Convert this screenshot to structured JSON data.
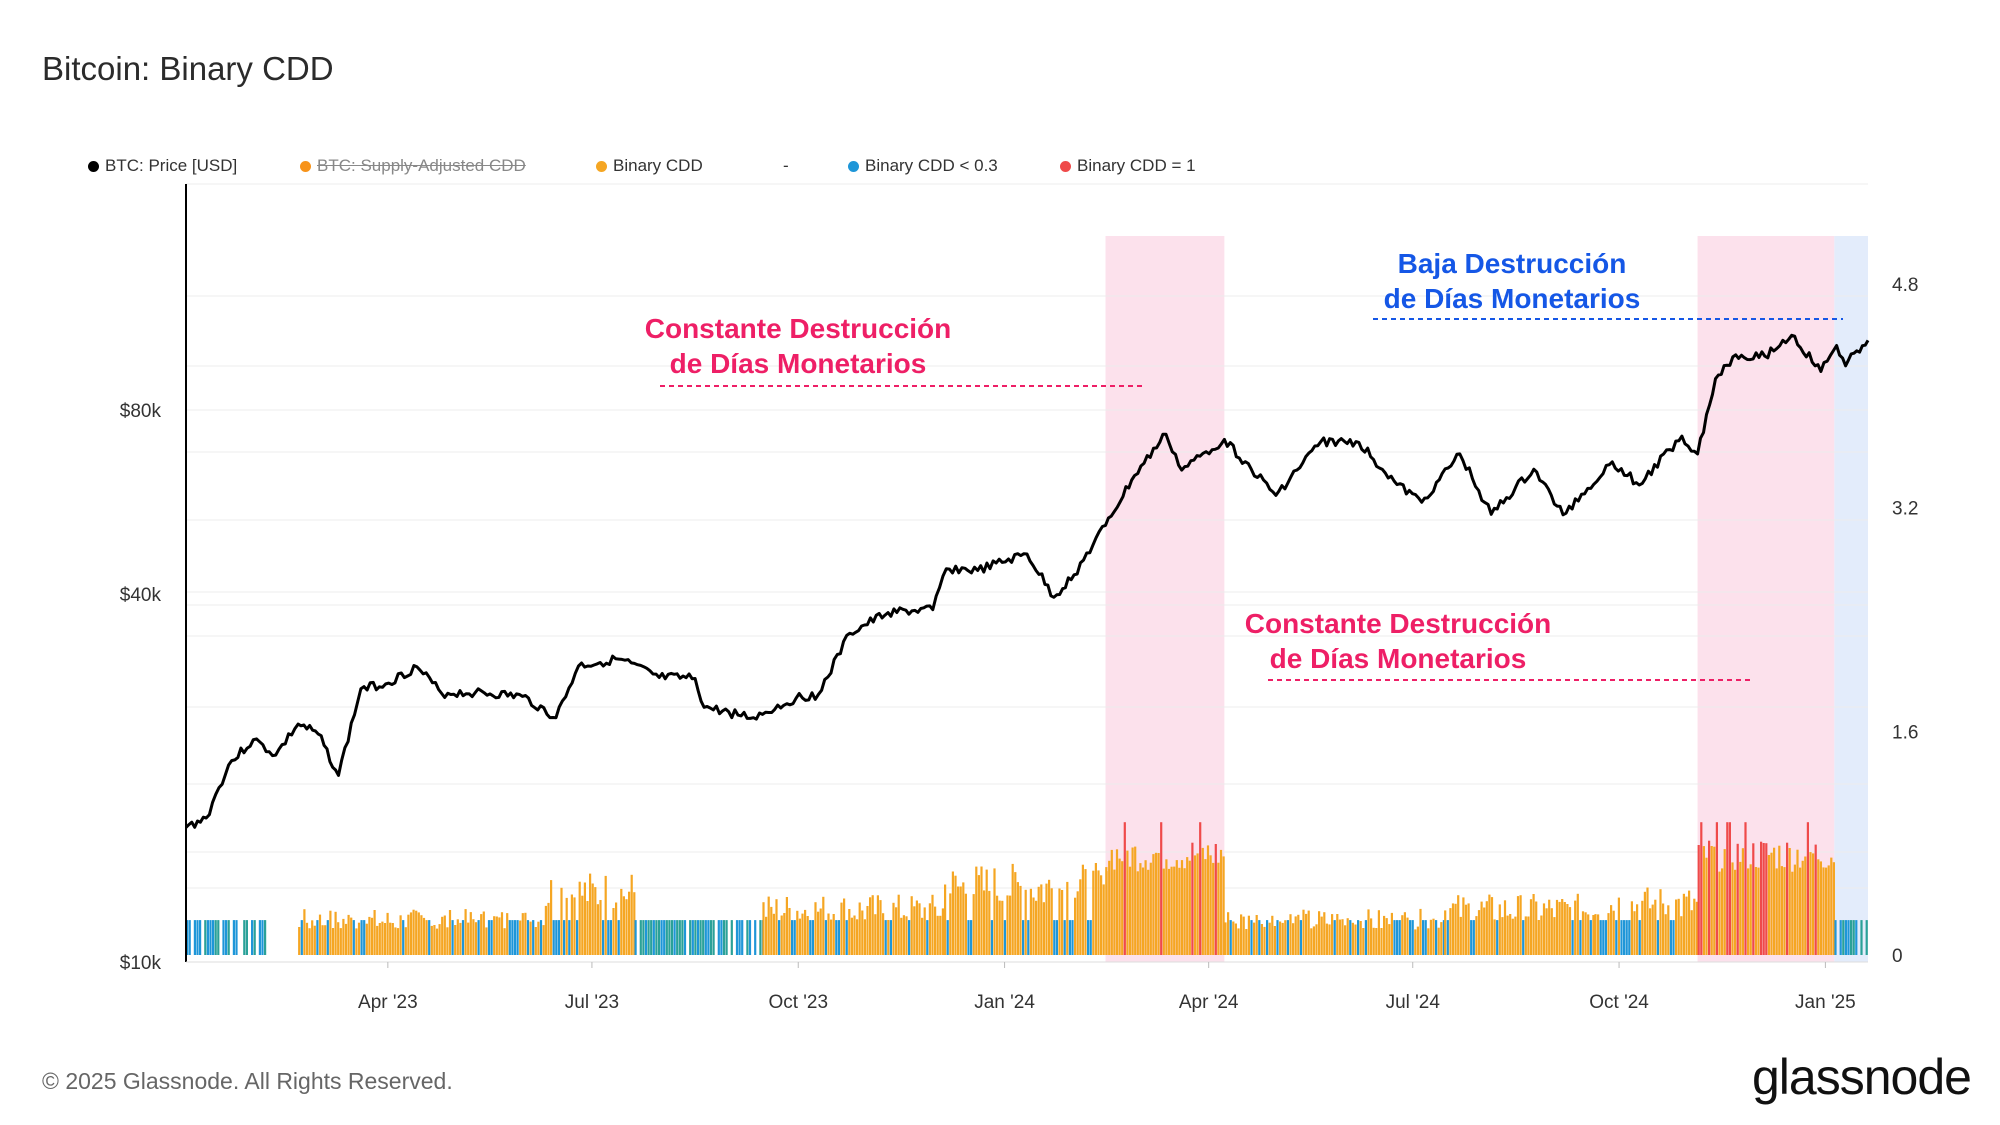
{
  "title": "Bitcoin: Binary CDD",
  "legend": [
    {
      "label": "BTC: Price [USD]",
      "color": "#000000",
      "disabled": false
    },
    {
      "label": "BTC: Supply-Adjusted CDD",
      "color": "#f7931a",
      "disabled": true
    },
    {
      "label": "Binary CDD",
      "color": "#f5a623",
      "disabled": false
    },
    {
      "label": "-",
      "color": "",
      "disabled": false
    },
    {
      "label": "Binary CDD < 0.3",
      "color": "#1e96d8",
      "disabled": false
    },
    {
      "label": "Binary CDD = 1",
      "color": "#ef4a4a",
      "disabled": false
    }
  ],
  "annotations": [
    {
      "lines": [
        "Constante Destrucción",
        "de Días Monetarios"
      ],
      "color": "#ee1f66",
      "period": "2023-09 to 2024-02"
    },
    {
      "lines": [
        "Constante Destrucción",
        "de Días Monetarios"
      ],
      "color": "#ee1f66",
      "period": "2024-07 to 2024-12"
    },
    {
      "lines": [
        "Baja Destrucción",
        "de Días Monetarios"
      ],
      "color": "#1557e6",
      "period": "2024-08 to 2025-01"
    }
  ],
  "footer": "© 2025 Glassnode. All Rights Reserved.",
  "brand": "glassnode",
  "chart_data": {
    "type": "line+bar",
    "title": "Bitcoin: Binary CDD",
    "x_range": [
      "2023-01-01",
      "2025-01-20"
    ],
    "x_ticks": [
      {
        "label": "Apr '23",
        "date": "2023-04-01"
      },
      {
        "label": "Jul '23",
        "date": "2023-07-01"
      },
      {
        "label": "Oct '23",
        "date": "2023-10-01"
      },
      {
        "label": "Jan '24",
        "date": "2024-01-01"
      },
      {
        "label": "Apr '24",
        "date": "2024-04-01"
      },
      {
        "label": "Jul '24",
        "date": "2024-07-01"
      },
      {
        "label": "Oct '24",
        "date": "2024-10-01"
      },
      {
        "label": "Jan '25",
        "date": "2025-01-01"
      }
    ],
    "left_axis": {
      "scale": "log",
      "ticks": [
        {
          "label": "$10k",
          "value": 10000
        },
        {
          "label": "$40k",
          "value": 40000
        },
        {
          "label": "$80k",
          "value": 80000
        }
      ]
    },
    "right_axis": {
      "range": [
        0,
        5.2
      ],
      "ticks": [
        {
          "label": "0",
          "value": 0
        },
        {
          "label": "1.6",
          "value": 1.6
        },
        {
          "label": "3.2",
          "value": 3.2
        },
        {
          "label": "4.8",
          "value": 4.8
        }
      ]
    },
    "highlight_bands": [
      {
        "start": "2024-02-15",
        "end": "2024-04-08",
        "color": "#fce1ec"
      },
      {
        "start": "2024-11-05",
        "end": "2025-01-05",
        "color": "#fce1ec"
      },
      {
        "start": "2025-01-05",
        "end": "2025-01-20",
        "color": "#e3ecfb"
      }
    ],
    "price_series": {
      "name": "BTC: Price [USD]",
      "color": "#000000",
      "points": [
        [
          "2023-01-01",
          16600
        ],
        [
          "2023-01-10",
          17200
        ],
        [
          "2023-01-20",
          21000
        ],
        [
          "2023-01-31",
          23100
        ],
        [
          "2023-02-10",
          21800
        ],
        [
          "2023-02-20",
          24500
        ],
        [
          "2023-03-01",
          23600
        ],
        [
          "2023-03-10",
          20200
        ],
        [
          "2023-03-20",
          28000
        ],
        [
          "2023-03-31",
          28500
        ],
        [
          "2023-04-14",
          30400
        ],
        [
          "2023-04-25",
          27500
        ],
        [
          "2023-05-10",
          27600
        ],
        [
          "2023-05-31",
          27200
        ],
        [
          "2023-06-15",
          25100
        ],
        [
          "2023-06-25",
          30500
        ],
        [
          "2023-07-13",
          31300
        ],
        [
          "2023-07-31",
          29200
        ],
        [
          "2023-08-16",
          29100
        ],
        [
          "2023-08-20",
          26100
        ],
        [
          "2023-09-11",
          25100
        ],
        [
          "2023-09-30",
          27000
        ],
        [
          "2023-10-10",
          27400
        ],
        [
          "2023-10-24",
          34500
        ],
        [
          "2023-11-10",
          37300
        ],
        [
          "2023-11-30",
          37700
        ],
        [
          "2023-12-06",
          44000
        ],
        [
          "2023-12-20",
          43700
        ],
        [
          "2024-01-11",
          46500
        ],
        [
          "2024-01-23",
          39500
        ],
        [
          "2024-02-01",
          43000
        ],
        [
          "2024-02-15",
          51800
        ],
        [
          "2024-02-28",
          62500
        ],
        [
          "2024-03-13",
          73000
        ],
        [
          "2024-03-20",
          63800
        ],
        [
          "2024-04-08",
          71600
        ],
        [
          "2024-04-20",
          64000
        ],
        [
          "2024-05-01",
          58000
        ],
        [
          "2024-05-21",
          71000
        ],
        [
          "2024-06-07",
          70800
        ],
        [
          "2024-06-24",
          60400
        ],
        [
          "2024-07-05",
          56500
        ],
        [
          "2024-07-22",
          67800
        ],
        [
          "2024-08-05",
          54000
        ],
        [
          "2024-08-24",
          64000
        ],
        [
          "2024-09-06",
          53900
        ],
        [
          "2024-09-28",
          65800
        ],
        [
          "2024-10-10",
          60300
        ],
        [
          "2024-10-29",
          72500
        ],
        [
          "2024-11-05",
          67800
        ],
        [
          "2024-11-13",
          90000
        ],
        [
          "2024-11-22",
          98500
        ],
        [
          "2024-12-05",
          98000
        ],
        [
          "2024-12-17",
          106000
        ],
        [
          "2024-12-30",
          92500
        ],
        [
          "2025-01-06",
          102000
        ],
        [
          "2025-01-10",
          94500
        ],
        [
          "2025-01-15",
          100000
        ],
        [
          "2025-01-20",
          104000
        ]
      ]
    },
    "binary_cdd_segments": [
      {
        "start": "2023-01-01",
        "end": "2023-02-05",
        "level": 0.25,
        "state": "Binary CDD < 0.3"
      },
      {
        "start": "2023-02-20",
        "end": "2023-06-10",
        "level": 0.3,
        "state": "Binary CDD"
      },
      {
        "start": "2023-06-10",
        "end": "2023-07-20",
        "level": 0.55,
        "state": "Binary CDD"
      },
      {
        "start": "2023-07-20",
        "end": "2023-09-15",
        "level": 0.25,
        "state": "Binary CDD < 0.3"
      },
      {
        "start": "2023-09-15",
        "end": "2023-12-05",
        "level": 0.4,
        "state": "Binary CDD"
      },
      {
        "start": "2023-12-05",
        "end": "2024-02-15",
        "level": 0.6,
        "state": "Binary CDD"
      },
      {
        "start": "2024-02-15",
        "end": "2024-04-08",
        "level": 0.85,
        "state": "Binary CDD = 1"
      },
      {
        "start": "2024-04-08",
        "end": "2024-07-15",
        "level": 0.3,
        "state": "Binary CDD"
      },
      {
        "start": "2024-07-15",
        "end": "2024-09-20",
        "level": 0.4,
        "state": "Binary CDD"
      },
      {
        "start": "2024-09-20",
        "end": "2024-11-05",
        "level": 0.45,
        "state": "Binary CDD"
      },
      {
        "start": "2024-11-05",
        "end": "2025-01-05",
        "level": 0.85,
        "state": "Binary CDD = 1"
      },
      {
        "start": "2025-01-05",
        "end": "2025-01-20",
        "level": 0.15,
        "state": "Binary CDD < 0.3"
      }
    ]
  }
}
